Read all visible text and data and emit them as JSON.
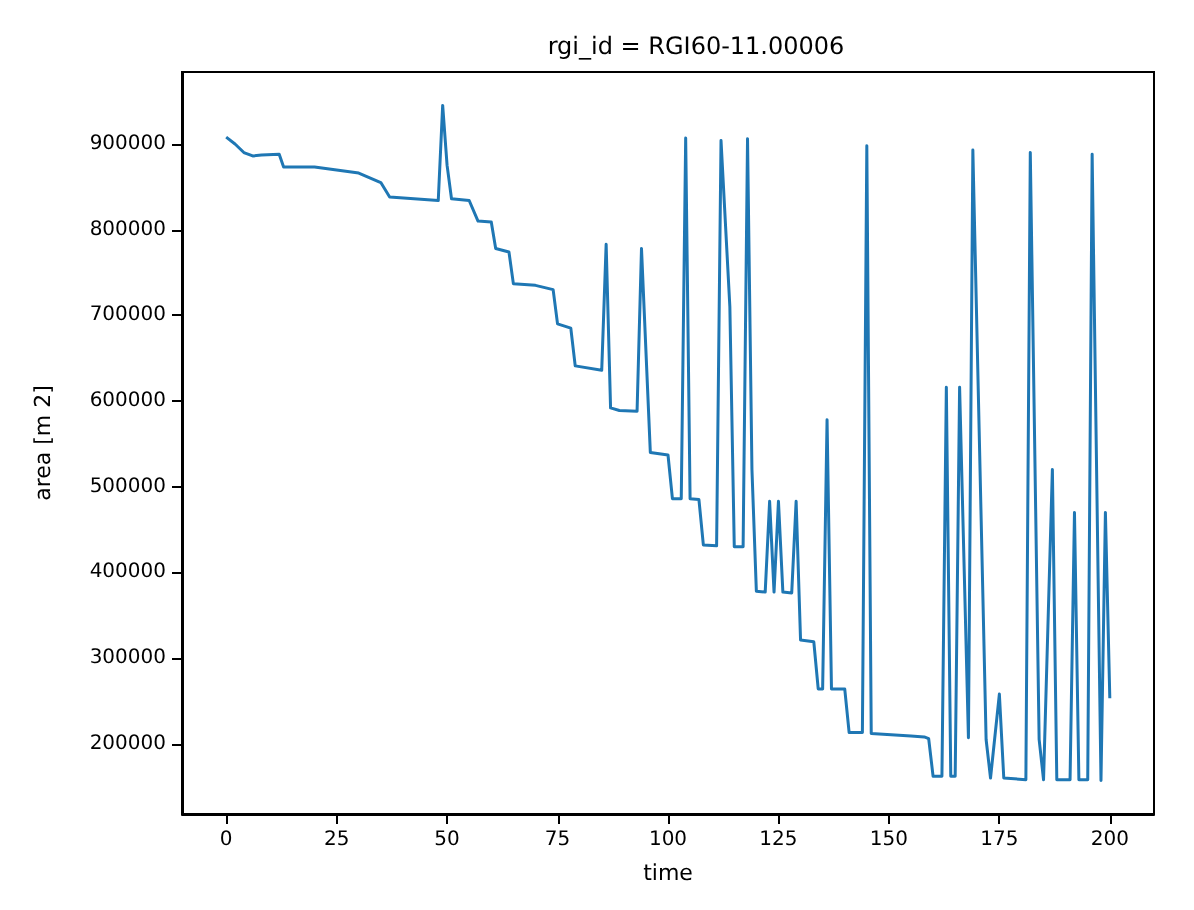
{
  "chart_data": {
    "type": "line",
    "title": "rgi_id = RGI60-11.00006",
    "xlabel": "time",
    "ylabel": "area [m 2]",
    "x": [
      0,
      2,
      4,
      6,
      8,
      12,
      13,
      20,
      30,
      35,
      37,
      48,
      49,
      50,
      51,
      55,
      57,
      60,
      61,
      64,
      65,
      70,
      74,
      75,
      78,
      79,
      85,
      86,
      87,
      89,
      93,
      94,
      96,
      100,
      101,
      103,
      104,
      105,
      107,
      108,
      111,
      112,
      114,
      115,
      117,
      118,
      119,
      120,
      122,
      123,
      124,
      125,
      126,
      128,
      129,
      130,
      133,
      134,
      135,
      136,
      137,
      140,
      141,
      144,
      145,
      146,
      155,
      158,
      159,
      160,
      162,
      163,
      164,
      165,
      166,
      168,
      169,
      172,
      173,
      175,
      176,
      181,
      182,
      184,
      185,
      187,
      188,
      191,
      192,
      193,
      195,
      196,
      198,
      199,
      200
    ],
    "series": [
      {
        "color": "#1f77b4",
        "values": [
          908000,
          900000,
          890000,
          886000,
          887000,
          888000,
          873000,
          873000,
          866000,
          855000,
          838000,
          834000,
          945000,
          875000,
          836000,
          834000,
          810000,
          809000,
          778000,
          774000,
          737000,
          735000,
          730000,
          690000,
          685000,
          641000,
          636000,
          783000,
          592000,
          589000,
          588000,
          778000,
          540000,
          537000,
          486000,
          486000,
          907000,
          486000,
          485000,
          432000,
          431000,
          904000,
          710000,
          430000,
          430000,
          906000,
          520000,
          378000,
          377000,
          483000,
          377000,
          483000,
          377000,
          376000,
          483000,
          321000,
          319000,
          264000,
          264000,
          578000,
          264000,
          264000,
          213000,
          213000,
          898000,
          212000,
          209000,
          208000,
          206000,
          162000,
          162000,
          616000,
          162000,
          162000,
          616000,
          207000,
          893000,
          205000,
          160000,
          258000,
          160000,
          158000,
          890000,
          205000,
          158000,
          520000,
          158000,
          158000,
          470000,
          158000,
          158000,
          888000,
          157000,
          470000,
          253000
        ]
      }
    ],
    "xlim": [
      -10,
      210
    ],
    "xticks": [
      0,
      25,
      50,
      75,
      100,
      125,
      150,
      175,
      200
    ],
    "ylim": [
      118000,
      984000
    ],
    "yticks": [
      200000,
      300000,
      400000,
      500000,
      600000,
      700000,
      800000,
      900000
    ],
    "grid": false,
    "marker": "none",
    "line_style": "solid"
  }
}
